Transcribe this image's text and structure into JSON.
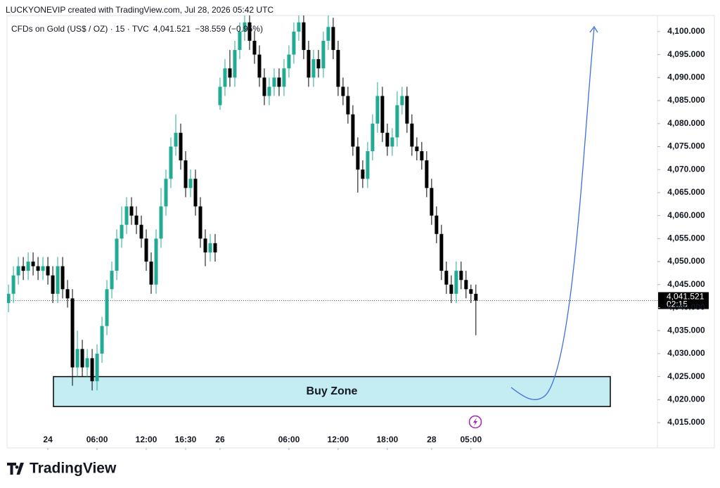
{
  "chart_data": {
    "type": "candlestick",
    "credit": "LUCKYONEVIP created with TradingView.com, Jul 28, 2026 05:42 UTC",
    "symbol": "CFDs on Gold (US$ / OZ) · 15 · TVC",
    "price_label": "4,041.521",
    "change_label": "−38.559",
    "change_pct_label": "(−0.95%)",
    "brand": "TradingView",
    "open": [
      4041,
      4043,
      4047,
      4049,
      4048,
      4050,
      4049,
      4048,
      4049,
      4047,
      4043,
      4049,
      4044,
      4042,
      4027,
      4031,
      4027,
      4029,
      4024,
      4030,
      4036,
      4044,
      4048,
      4055,
      4058,
      4062,
      4060,
      4058,
      4055,
      4050,
      4045,
      4055,
      4062,
      4068,
      4075,
      4078,
      4072,
      4066,
      4068,
      4062,
      4055,
      4052,
      4054,
      4084,
      4088,
      4092,
      4090,
      4096,
      4100,
      4102,
      4098,
      4095,
      4090,
      4086,
      4088,
      4090,
      4088,
      4092,
      4095,
      4100,
      4102,
      4096,
      4090,
      4094,
      4092,
      4098,
      4101,
      4096,
      4088,
      4086,
      4082,
      4075,
      4070,
      4068,
      4074,
      4080,
      4086,
      4078,
      4075,
      4077,
      4084,
      4086,
      4080,
      4075,
      4074,
      4072,
      4066,
      4060,
      4056,
      4048,
      4045,
      4043,
      4048,
      4046,
      4044,
      4043
    ],
    "high": [
      4045,
      4049,
      4051,
      4051,
      4052,
      4052,
      4051,
      4051,
      4051,
      4049,
      4051,
      4051,
      4046,
      4044,
      4035,
      4033,
      4031,
      4031,
      4032,
      4038,
      4046,
      4050,
      4057,
      4062,
      4064,
      4064,
      4062,
      4060,
      4057,
      4052,
      4057,
      4066,
      4070,
      4077,
      4082,
      4080,
      4074,
      4070,
      4070,
      4064,
      4057,
      4056,
      4056,
      4090,
      4094,
      4096,
      4098,
      4102,
      4104,
      4104,
      4100,
      4097,
      4092,
      4090,
      4092,
      4092,
      4094,
      4097,
      4102,
      4104,
      4104,
      4098,
      4096,
      4096,
      4100,
      4104,
      4103,
      4098,
      4090,
      4088,
      4084,
      4077,
      4072,
      4076,
      4082,
      4089,
      4088,
      4080,
      4079,
      4087,
      4088,
      4088,
      4082,
      4077,
      4076,
      4074,
      4068,
      4062,
      4058,
      4050,
      4047,
      4050,
      4050,
      4048,
      4045,
      4045
    ],
    "low": [
      4039,
      4041,
      4045,
      4046,
      4046,
      4047,
      4046,
      4046,
      4045,
      4041,
      4041,
      4042,
      4040,
      4023,
      4025,
      4025,
      4025,
      4022,
      4022,
      4028,
      4034,
      4042,
      4046,
      4053,
      4056,
      4058,
      4056,
      4053,
      4048,
      4043,
      4043,
      4053,
      4060,
      4066,
      4073,
      4070,
      4064,
      4064,
      4060,
      4053,
      4049,
      4050,
      4050,
      4083,
      4086,
      4088,
      4088,
      4094,
      4098,
      4096,
      4093,
      4088,
      4084,
      4084,
      4086,
      4086,
      4086,
      4090,
      4093,
      4098,
      4094,
      4088,
      4088,
      4090,
      4090,
      4096,
      4094,
      4086,
      4084,
      4080,
      4073,
      4065,
      4066,
      4066,
      4072,
      4078,
      4076,
      4073,
      4073,
      4075,
      4082,
      4078,
      4073,
      4072,
      4070,
      4064,
      4058,
      4054,
      4046,
      4043,
      4041,
      4041,
      4044,
      4042,
      4041,
      4034
    ],
    "close": [
      4043,
      4047,
      4049,
      4048,
      4050,
      4049,
      4048,
      4049,
      4047,
      4043,
      4049,
      4044,
      4042,
      4027,
      4031,
      4027,
      4029,
      4024,
      4030,
      4036,
      4044,
      4048,
      4055,
      4058,
      4062,
      4060,
      4058,
      4055,
      4050,
      4045,
      4055,
      4062,
      4068,
      4075,
      4078,
      4072,
      4066,
      4068,
      4062,
      4055,
      4052,
      4054,
      4052,
      4088,
      4092,
      4090,
      4096,
      4100,
      4102,
      4098,
      4095,
      4090,
      4086,
      4088,
      4090,
      4088,
      4092,
      4095,
      4100,
      4102,
      4096,
      4090,
      4094,
      4092,
      4098,
      4101,
      4096,
      4088,
      4086,
      4082,
      4075,
      4070,
      4068,
      4074,
      4080,
      4086,
      4078,
      4075,
      4077,
      4084,
      4086,
      4080,
      4075,
      4074,
      4072,
      4066,
      4060,
      4056,
      4048,
      4045,
      4043,
      4048,
      4046,
      4044,
      4043,
      4041.521
    ],
    "up_color": "#22ab94",
    "down_color": "#000000",
    "xlim": [
      -0.3,
      131.9
    ],
    "xticks": [
      {
        "value": 8,
        "label": "24"
      },
      {
        "value": 18,
        "label": "06:00"
      },
      {
        "value": 28,
        "label": "12:00"
      },
      {
        "value": 36,
        "label": "16:30"
      },
      {
        "value": 43,
        "label": "26"
      },
      {
        "value": 57,
        "label": "06:00"
      },
      {
        "value": 67,
        "label": "12:00"
      },
      {
        "value": 77,
        "label": "18:00"
      },
      {
        "value": 86,
        "label": "28"
      },
      {
        "value": 94,
        "label": "05:00"
      }
    ],
    "ylim": [
      4009.5,
      4103.5
    ],
    "yticks": [
      {
        "value": 4015,
        "label": "4,015.000"
      },
      {
        "value": 4020,
        "label": "4,020.000"
      },
      {
        "value": 4025,
        "label": "4,025.000"
      },
      {
        "value": 4030,
        "label": "4,030.000"
      },
      {
        "value": 4035,
        "label": "4,035.000"
      },
      {
        "value": 4040,
        "label": "4,040.000"
      },
      {
        "value": 4045,
        "label": "4,045.000"
      },
      {
        "value": 4050,
        "label": "4,050.000"
      },
      {
        "value": 4055,
        "label": "4,055.000"
      },
      {
        "value": 4060,
        "label": "4,060.000"
      },
      {
        "value": 4065,
        "label": "4,065.000"
      },
      {
        "value": 4070,
        "label": "4,070.000"
      },
      {
        "value": 4075,
        "label": "4,075.000"
      },
      {
        "value": 4080,
        "label": "4,080.000"
      },
      {
        "value": 4085,
        "label": "4,085.000"
      },
      {
        "value": 4090,
        "label": "4,090.000"
      },
      {
        "value": 4095,
        "label": "4,095.000"
      },
      {
        "value": 4100,
        "label": "4,100.000"
      }
    ],
    "last_price": 4041.521,
    "last_price_label": "4,041.521",
    "countdown": "02:15",
    "buy_zone": {
      "label": "Buy Zone",
      "low": 4018.5,
      "high": 4025
    }
  }
}
